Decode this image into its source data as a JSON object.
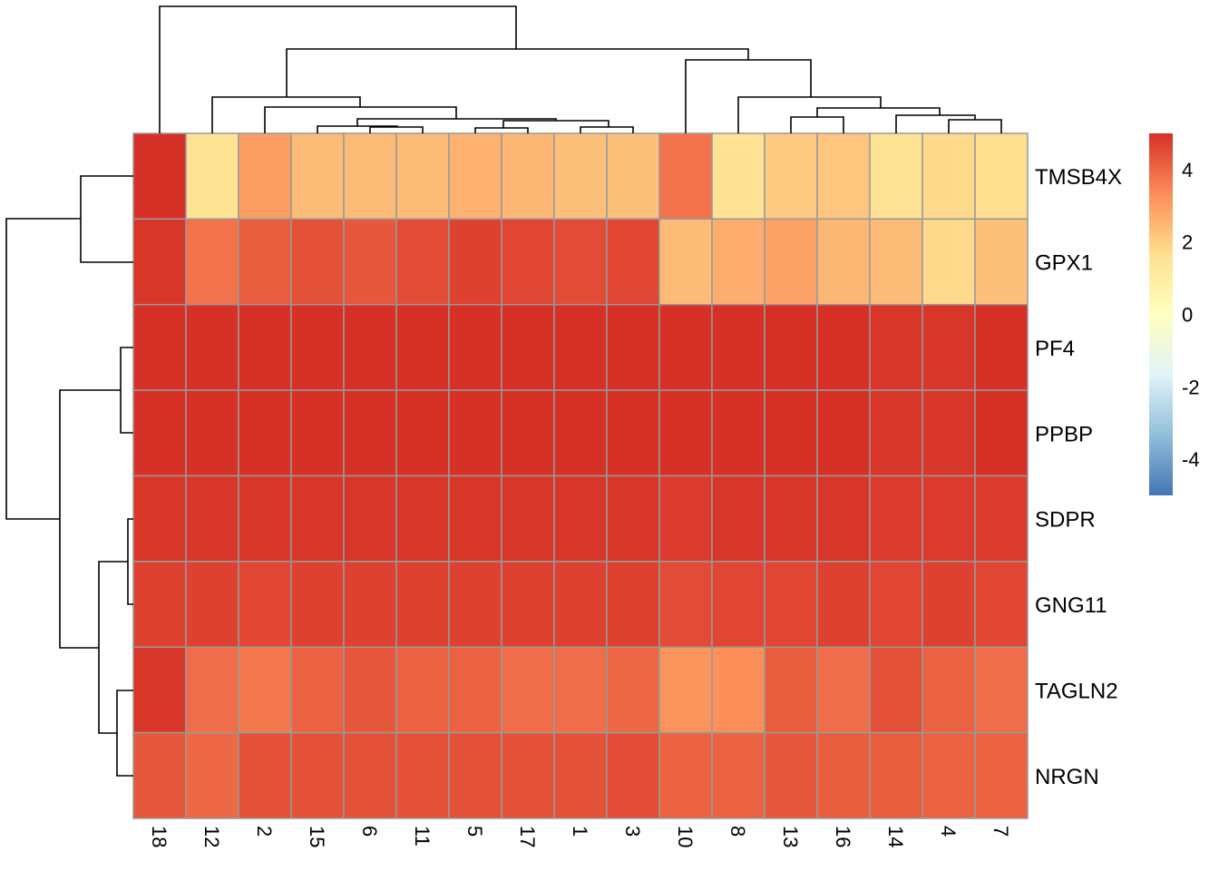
{
  "chart_data": {
    "type": "heatmap",
    "title": "",
    "rows": [
      "TMSB4X",
      "GPX1",
      "PF4",
      "PPBP",
      "SDPR",
      "GNG11",
      "TAGLN2",
      "NRGN"
    ],
    "columns": [
      "18",
      "12",
      "2",
      "15",
      "6",
      "11",
      "5",
      "17",
      "1",
      "3",
      "10",
      "8",
      "13",
      "16",
      "14",
      "4",
      "7"
    ],
    "values": [
      [
        5.0,
        1.5,
        3.0,
        2.4,
        2.4,
        2.4,
        2.6,
        2.5,
        2.3,
        2.3,
        3.8,
        1.6,
        2.1,
        2.2,
        1.5,
        1.8,
        1.7
      ],
      [
        4.9,
        3.8,
        4.2,
        4.4,
        4.3,
        4.5,
        4.7,
        4.6,
        4.5,
        4.6,
        2.4,
        2.7,
        2.9,
        2.5,
        2.4,
        1.8,
        2.3
      ],
      [
        5.0,
        5.0,
        5.0,
        5.0,
        5.0,
        5.0,
        5.0,
        5.0,
        5.0,
        5.0,
        5.0,
        5.0,
        5.0,
        5.0,
        4.9,
        4.9,
        5.0
      ],
      [
        5.0,
        5.0,
        5.0,
        5.0,
        5.0,
        5.0,
        5.0,
        5.0,
        5.0,
        5.0,
        5.0,
        5.0,
        5.0,
        5.0,
        4.9,
        4.9,
        5.0
      ],
      [
        4.9,
        4.9,
        4.9,
        4.9,
        4.9,
        4.9,
        4.9,
        4.9,
        4.9,
        4.9,
        4.8,
        4.9,
        4.9,
        4.9,
        4.8,
        4.8,
        4.8
      ],
      [
        4.7,
        4.7,
        4.6,
        4.7,
        4.7,
        4.7,
        4.7,
        4.7,
        4.7,
        4.7,
        4.5,
        4.6,
        4.6,
        4.7,
        4.6,
        4.7,
        4.6
      ],
      [
        4.9,
        3.9,
        3.7,
        4.1,
        4.3,
        4.1,
        4.1,
        3.9,
        3.9,
        4.0,
        3.2,
        3.3,
        4.2,
        3.9,
        4.4,
        4.1,
        3.9
      ],
      [
        4.3,
        4.0,
        4.4,
        4.4,
        4.4,
        4.4,
        4.4,
        4.4,
        4.4,
        4.5,
        4.1,
        4.1,
        4.3,
        4.2,
        4.2,
        4.1,
        4.1
      ]
    ],
    "color_scale": {
      "range": [
        -5,
        5
      ],
      "colors": [
        "#4575B4",
        "#91BFDB",
        "#E0F3F8",
        "#FFFFBF",
        "#FEE090",
        "#FC8D59",
        "#D73027"
      ],
      "ticks": [
        "4",
        "2",
        "0",
        "-2",
        "-4"
      ],
      "tick_values": [
        4,
        2,
        0,
        -2,
        -4
      ]
    },
    "legend_position": "right",
    "grid": true,
    "cell_border_color": "#999999",
    "row_dendrogram": true,
    "column_dendrogram": true
  }
}
